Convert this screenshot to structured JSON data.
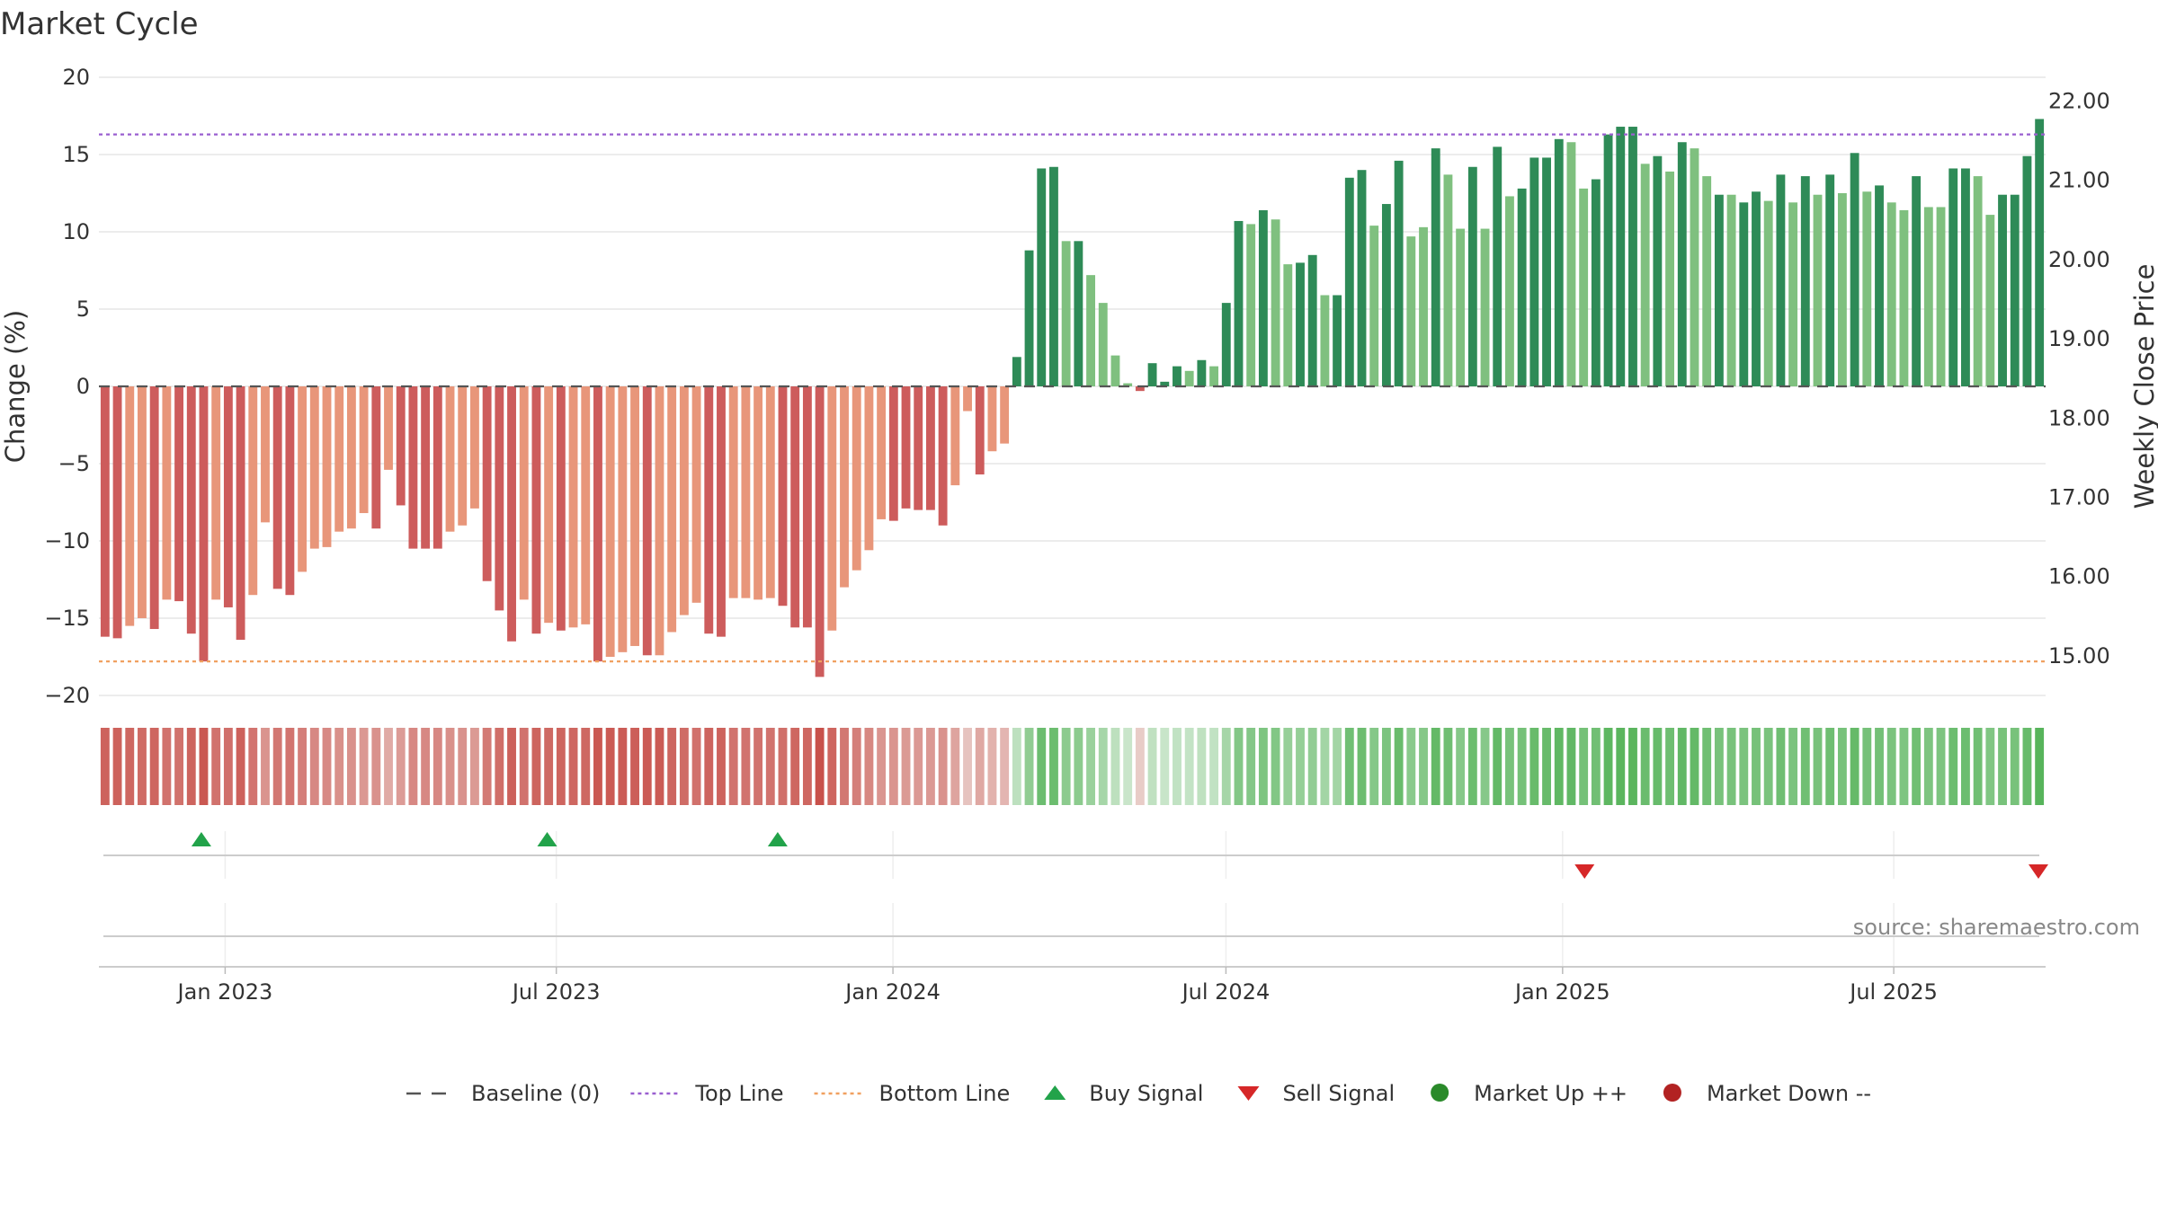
{
  "chart_data": {
    "type": "bar",
    "title": "Market Cycle",
    "ylabel": "Change (%)",
    "ylabel_right": "Weekly Close Price",
    "ylim": [
      -20,
      20
    ],
    "yticks": [
      20,
      15,
      10,
      5,
      0,
      -5,
      -10,
      -15,
      -20
    ],
    "ytick_labels": [
      "20",
      "15",
      "10",
      "5",
      "0",
      "−5",
      "−10",
      "−15",
      "−20"
    ],
    "ylim_right": [
      14.5,
      22.3
    ],
    "yticks_right": [
      22,
      21,
      20,
      19,
      18,
      17,
      16,
      15
    ],
    "ytick_labels_right": [
      "22.00",
      "21.00",
      "20.00",
      "19.00",
      "18.00",
      "17.00",
      "16.00",
      "15.00"
    ],
    "x_start": "2022-10-24",
    "x_end": "2025-09-22",
    "xticks": [
      {
        "date": "2023-01-01",
        "label": "Jan 2023"
      },
      {
        "date": "2023-07-01",
        "label": "Jul 2023"
      },
      {
        "date": "2024-01-01",
        "label": "Jan 2024"
      },
      {
        "date": "2024-07-01",
        "label": "Jul 2024"
      },
      {
        "date": "2025-01-01",
        "label": "Jan 2025"
      },
      {
        "date": "2025-07-01",
        "label": "Jul 2025"
      }
    ],
    "top_line": 16.3,
    "bottom_line": -17.8,
    "colors": {
      "down_strong": "#cd5c5c",
      "down_weak": "#e8967a",
      "up_strong": "#2e8b57",
      "up_weak": "#7fc07f",
      "top_line": "#9a5fd0",
      "bottom_line": "#f0a060",
      "baseline": "#555555",
      "buy": "#22a34a",
      "sell": "#d62728",
      "market_up": "#2a8a2a",
      "market_down": "#b22222"
    },
    "values": [
      -16.2,
      -16.3,
      -15.5,
      -15.0,
      -15.7,
      -13.8,
      -13.9,
      -16.0,
      -17.8,
      -13.8,
      -14.3,
      -16.4,
      -13.5,
      -8.8,
      -13.1,
      -13.5,
      -12.0,
      -10.5,
      -10.4,
      -9.4,
      -9.2,
      -8.2,
      -9.2,
      -5.4,
      -7.7,
      -10.5,
      -10.5,
      -10.5,
      -9.4,
      -9.0,
      -7.9,
      -12.6,
      -14.5,
      -16.5,
      -13.8,
      -16.0,
      -15.3,
      -15.8,
      -15.6,
      -15.4,
      -17.8,
      -17.5,
      -17.2,
      -16.8,
      -17.4,
      -17.4,
      -15.9,
      -14.8,
      -14.0,
      -16.0,
      -16.2,
      -13.7,
      -13.7,
      -13.8,
      -13.7,
      -14.2,
      -15.6,
      -15.6,
      -18.8,
      -15.8,
      -13.0,
      -11.9,
      -10.6,
      -8.6,
      -8.7,
      -7.9,
      -8.0,
      -8.0,
      -9.0,
      -6.4,
      -1.6,
      -5.7,
      -4.2,
      -3.7,
      1.9,
      8.8,
      14.1,
      14.2,
      9.4,
      9.4,
      7.2,
      5.4,
      2.0,
      0.2,
      -0.3,
      1.5,
      0.3,
      1.3,
      1.0,
      1.7,
      1.3,
      5.4,
      10.7,
      10.5,
      11.4,
      10.8,
      7.9,
      8.0,
      8.5,
      5.9,
      5.9,
      13.5,
      14.0,
      10.4,
      11.8,
      14.6,
      9.7,
      10.3,
      15.4,
      13.7,
      10.2,
      14.2,
      10.2,
      15.5,
      12.3,
      12.8,
      14.8,
      14.8,
      16.0,
      15.8,
      12.8,
      13.4,
      16.3,
      16.8,
      16.8,
      14.4,
      14.9,
      13.9,
      15.8,
      15.4,
      13.6,
      12.4,
      12.4,
      11.9,
      12.6,
      12.0,
      13.7,
      11.9,
      13.6,
      12.4,
      13.7,
      12.5,
      15.1,
      12.6,
      13.0,
      11.9,
      11.4,
      13.6,
      11.6,
      11.6,
      14.1,
      14.1,
      13.6,
      11.1,
      12.4,
      12.4,
      14.9,
      17.3
    ],
    "strength": [
      1,
      1,
      0,
      0,
      1,
      0,
      1,
      1,
      1,
      0,
      1,
      1,
      0,
      0,
      1,
      1,
      0,
      0,
      0,
      0,
      0,
      0,
      1,
      0,
      1,
      1,
      1,
      1,
      0,
      0,
      0,
      1,
      1,
      1,
      0,
      1,
      0,
      1,
      0,
      0,
      1,
      0,
      0,
      0,
      1,
      0,
      0,
      0,
      0,
      1,
      1,
      0,
      0,
      0,
      0,
      1,
      1,
      1,
      1,
      0,
      0,
      0,
      0,
      0,
      1,
      1,
      1,
      1,
      1,
      0,
      0,
      1,
      0,
      0,
      1,
      1,
      1,
      1,
      0,
      1,
      0,
      0,
      0,
      0,
      1,
      1,
      1,
      1,
      0,
      1,
      0,
      1,
      1,
      0,
      1,
      0,
      0,
      1,
      1,
      0,
      1,
      1,
      1,
      0,
      1,
      1,
      0,
      0,
      1,
      0,
      0,
      1,
      0,
      1,
      0,
      1,
      1,
      1,
      1,
      0,
      0,
      1,
      1,
      1,
      1,
      0,
      1,
      0,
      1,
      0,
      0,
      1,
      0,
      1,
      1,
      0,
      1,
      0,
      1,
      0,
      1,
      0,
      1,
      0,
      1,
      0,
      0,
      1,
      0,
      0,
      1,
      1,
      0,
      0,
      1,
      1,
      1,
      1
    ],
    "buy_signals": [
      "2022-12-19",
      "2023-06-26",
      "2023-10-30"
    ],
    "sell_signals": [
      "2025-01-13",
      "2025-09-22"
    ],
    "source": "source: sharemaestro.com",
    "legend_position": "bottom-center",
    "legend": [
      {
        "key": "baseline",
        "label": "Baseline (0)"
      },
      {
        "key": "top_line",
        "label": "Top Line"
      },
      {
        "key": "bottom_line",
        "label": "Bottom Line"
      },
      {
        "key": "buy",
        "label": "Buy Signal"
      },
      {
        "key": "sell",
        "label": "Sell Signal"
      },
      {
        "key": "market_up",
        "label": "Market Up ++"
      },
      {
        "key": "market_down",
        "label": "Market Down --"
      }
    ]
  }
}
